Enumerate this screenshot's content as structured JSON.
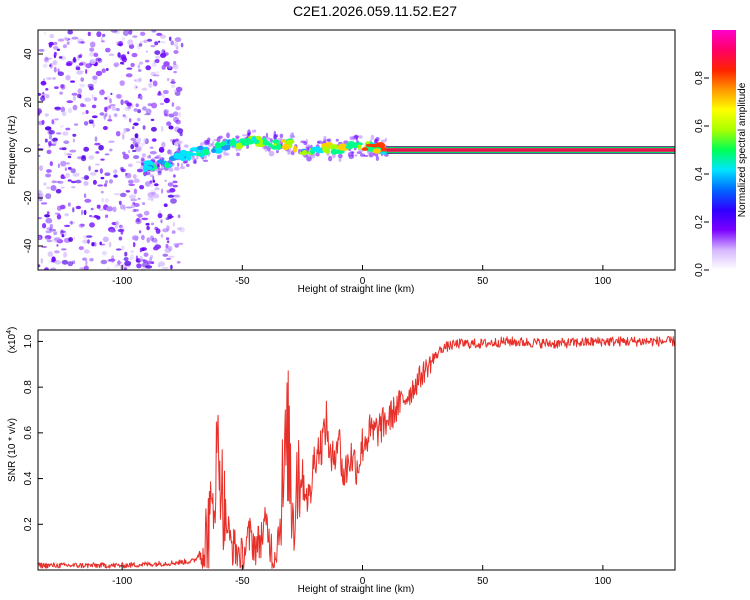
{
  "title": "C2E1.2026.059.11.52.E27",
  "chart_data": [
    {
      "type": "heatmap",
      "title": "C2E1.2026.059.11.52.E27",
      "xlabel": "Height of straight line (km)",
      "ylabel": "Frequency (Hz)",
      "xlim": [
        -135,
        130
      ],
      "ylim": [
        -50,
        50
      ],
      "xticks": [
        -100,
        -50,
        0,
        50,
        100
      ],
      "yticks": [
        -40,
        -20,
        0,
        20,
        40
      ],
      "ridge": {
        "x": [
          -92,
          -85,
          -80,
          -75,
          -70,
          -65,
          -60,
          -55,
          -50,
          -45,
          -40,
          -35,
          -30,
          -25,
          -20,
          -15,
          -10,
          -5,
          0,
          5,
          10,
          20,
          40,
          60,
          80,
          100,
          120,
          130
        ],
        "y": [
          -7,
          -6,
          -5,
          -3,
          -1,
          0,
          1,
          2,
          3,
          4,
          3,
          2,
          3,
          0,
          -1,
          1,
          0,
          1,
          2,
          1,
          0,
          0,
          0,
          0,
          0,
          0,
          0,
          0
        ]
      },
      "strong_band": {
        "x_start": 10,
        "x_end": 130,
        "freq": 0
      },
      "noise_region": {
        "x_start": -135,
        "x_end": -75
      }
    },
    {
      "type": "colorbar",
      "label": "Normalized spectral amplitude",
      "range": [
        0,
        1
      ],
      "ticks": [
        "0.0",
        "0.2",
        "0.4",
        "0.6",
        "0.8"
      ],
      "tick_values": [
        0.0,
        0.2,
        0.4,
        0.6,
        0.8
      ],
      "colors": [
        "#ffffff",
        "#d6b8ff",
        "#7a00ff",
        "#2e00ff",
        "#0066ff",
        "#00e5ff",
        "#00ff55",
        "#a8ff00",
        "#ffff00",
        "#ff9900",
        "#ff2200",
        "#ff0066",
        "#ff00cc"
      ]
    },
    {
      "type": "line",
      "xlabel": "Height of straight line (km)",
      "ylabel": "SNR (10 * v/v)",
      "multiplier": "(x10",
      "multiplier_exp": "4",
      "multiplier_close": ")",
      "xlim": [
        -135,
        130
      ],
      "ylim": [
        0,
        1.05
      ],
      "xticks": [
        -100,
        -50,
        0,
        50,
        100
      ],
      "yticks": [
        "0.2",
        "0.4",
        "0.6",
        "0.8",
        "1.0"
      ],
      "ytick_values": [
        0.2,
        0.4,
        0.6,
        0.8,
        1.0
      ],
      "color": "#e8302a",
      "series": [
        {
          "name": "SNR",
          "x": [
            -135,
            -120,
            -100,
            -80,
            -70,
            -66,
            -63,
            -61,
            -60,
            -58,
            -55,
            -52,
            -50,
            -47,
            -44,
            -40,
            -37,
            -35,
            -33,
            -31,
            -29,
            -27,
            -25,
            -22,
            -20,
            -17,
            -15,
            -13,
            -10,
            -8,
            -5,
            -2,
            0,
            3,
            5,
            10,
            15,
            20,
            25,
            30,
            33,
            36,
            40,
            50,
            60,
            80,
            100,
            120,
            130
          ],
          "y": [
            0.02,
            0.02,
            0.02,
            0.03,
            0.04,
            0.1,
            0.2,
            0.45,
            0.55,
            0.3,
            0.12,
            0.08,
            0.05,
            0.15,
            0.1,
            0.2,
            0.05,
            0.15,
            0.35,
            0.6,
            0.25,
            0.45,
            0.4,
            0.3,
            0.5,
            0.55,
            0.65,
            0.45,
            0.6,
            0.4,
            0.5,
            0.45,
            0.55,
            0.6,
            0.6,
            0.65,
            0.72,
            0.78,
            0.86,
            0.93,
            0.97,
            0.98,
            0.99,
            0.99,
            1.0,
            0.99,
            1.0,
            1.0,
            1.0
          ]
        }
      ]
    }
  ],
  "colors": {
    "line": "#e8302a",
    "band": "#ff0066",
    "noise": "#7a00ff"
  }
}
